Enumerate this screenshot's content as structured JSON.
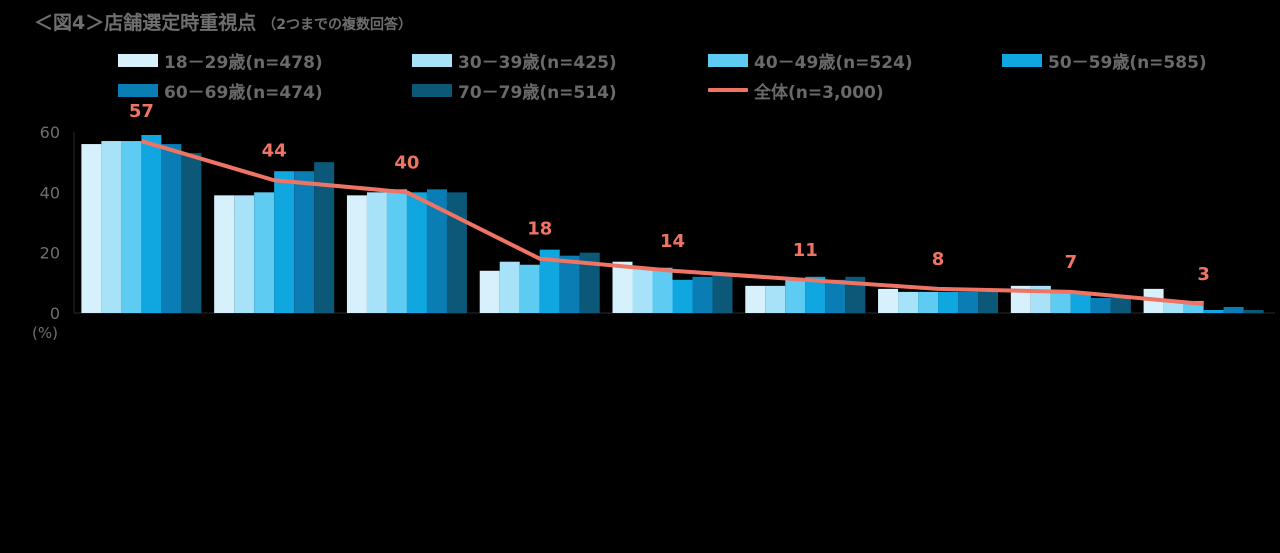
{
  "chart_data": {
    "type": "bar",
    "title": "＜図4＞店舗選定時重視点",
    "subtitle": "（2つまでの複数回答）",
    "unit_label": "(%)",
    "categories": [
      "",
      "",
      "",
      "",
      "",
      "",
      "",
      "",
      ""
    ],
    "ylim": [
      0,
      60
    ],
    "yticks": [
      0,
      20,
      40,
      60
    ],
    "series": [
      {
        "name": "18－29歳(n=478)",
        "color": "#d6f1fc",
        "values": [
          56,
          39,
          39,
          14,
          17,
          9,
          8,
          9,
          8
        ]
      },
      {
        "name": "30－39歳(n=425)",
        "color": "#a8e2f8",
        "values": [
          57,
          39,
          40,
          17,
          15,
          9,
          7,
          9,
          4
        ]
      },
      {
        "name": "40－49歳(n=524)",
        "color": "#5ecbf2",
        "values": [
          57,
          40,
          41,
          16,
          15,
          11,
          7,
          7,
          4
        ]
      },
      {
        "name": "50－59歳(n=585)",
        "color": "#10a7e0",
        "values": [
          59,
          47,
          40,
          21,
          11,
          12,
          7,
          7,
          1
        ]
      },
      {
        "name": "60－69歳(n=474)",
        "color": "#0a7db4",
        "values": [
          56,
          47,
          41,
          19,
          12,
          11,
          7,
          5,
          2
        ]
      },
      {
        "name": "70－79歳(n=514)",
        "color": "#0b5878",
        "values": [
          53,
          50,
          40,
          20,
          13,
          12,
          7,
          5,
          1
        ]
      }
    ],
    "total": {
      "name": "全体(n=3,000)",
      "color": "#f07464",
      "values": [
        57,
        44,
        40,
        18,
        14,
        11,
        8,
        7,
        3
      ]
    },
    "grid": false,
    "legend_position": "top"
  }
}
